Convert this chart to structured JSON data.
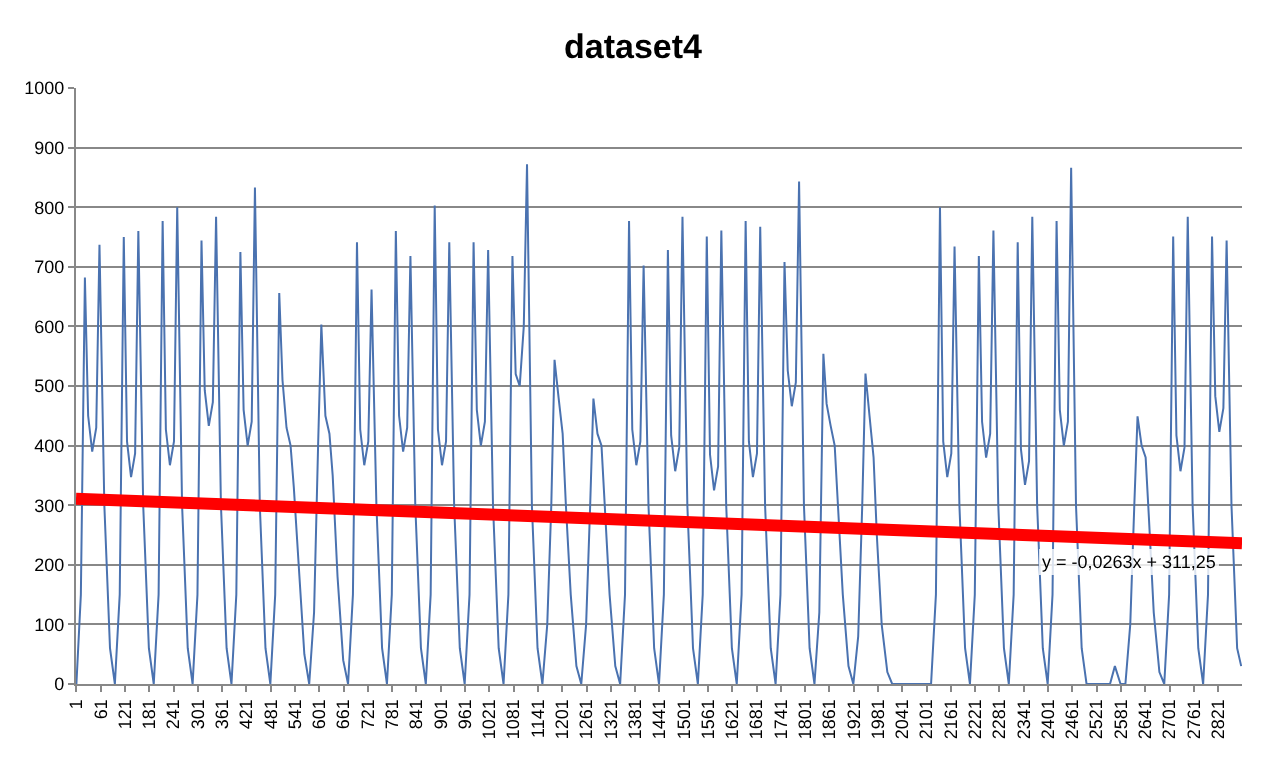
{
  "chart_data": {
    "type": "line",
    "title": "dataset4",
    "xlim": [
      0,
      2880
    ],
    "ylim": [
      0,
      1000
    ],
    "xticks": [
      1,
      61,
      121,
      181,
      241,
      301,
      361,
      421,
      481,
      541,
      601,
      661,
      721,
      781,
      841,
      901,
      961,
      1021,
      1081,
      1141,
      1201,
      1261,
      1321,
      1381,
      1441,
      1501,
      1561,
      1621,
      1681,
      1741,
      1801,
      1861,
      1921,
      1981,
      2041,
      2101,
      2161,
      2221,
      2281,
      2341,
      2401,
      2461,
      2521,
      2581,
      2641,
      2701,
      2761,
      2821
    ],
    "yticks": [
      0,
      100,
      200,
      300,
      400,
      500,
      600,
      700,
      800,
      900,
      1000
    ],
    "grid": "y",
    "marker": "none",
    "line_style": "solid",
    "series": [
      {
        "color": "#4a72b0",
        "x": [
          1,
          12,
          22,
          30,
          40,
          50,
          58,
          70,
          84,
          96,
          108,
          118,
          126,
          136,
          146,
          154,
          166,
          180,
          192,
          204,
          214,
          222,
          232,
          242,
          250,
          262,
          276,
          288,
          300,
          310,
          318,
          328,
          338,
          346,
          358,
          372,
          384,
          396,
          406,
          414,
          424,
          434,
          442,
          454,
          468,
          480,
          492,
          502,
          510,
          520,
          530,
          538,
          550,
          564,
          576,
          588,
          598,
          606,
          616,
          626,
          634,
          646,
          660,
          672,
          684,
          694,
          702,
          712,
          722,
          730,
          742,
          756,
          768,
          780,
          790,
          798,
          808,
          818,
          826,
          838,
          852,
          864,
          876,
          886,
          894,
          904,
          914,
          922,
          934,
          948,
          960,
          972,
          982,
          990,
          1000,
          1010,
          1018,
          1030,
          1044,
          1056,
          1068,
          1078,
          1086,
          1096,
          1106,
          1114,
          1126,
          1140,
          1152,
          1164,
          1174,
          1182,
          1192,
          1202,
          1210,
          1222,
          1236,
          1248,
          1260,
          1270,
          1278,
          1288,
          1298,
          1306,
          1318,
          1332,
          1344,
          1356,
          1366,
          1374,
          1384,
          1394,
          1402,
          1414,
          1428,
          1440,
          1452,
          1462,
          1470,
          1480,
          1490,
          1498,
          1510,
          1524,
          1536,
          1548,
          1558,
          1566,
          1576,
          1586,
          1594,
          1606,
          1620,
          1632,
          1644,
          1654,
          1662,
          1672,
          1682,
          1690,
          1702,
          1716,
          1728,
          1740,
          1750,
          1758,
          1768,
          1778,
          1786,
          1798,
          1812,
          1824,
          1836,
          1846,
          1854,
          1864,
          1874,
          1882,
          1894,
          1908,
          1920,
          1932,
          1942,
          1950,
          1960,
          1970,
          1978,
          1990,
          2004,
          2016,
          2028,
          2038,
          2046,
          2056,
          2066,
          2074,
          2086,
          2100,
          2112,
          2124,
          2134,
          2142,
          2152,
          2162,
          2170,
          2182,
          2196,
          2208,
          2220,
          2230,
          2238,
          2248,
          2258,
          2266,
          2278,
          2292,
          2304,
          2316,
          2326,
          2334,
          2344,
          2354,
          2362,
          2374,
          2388,
          2400,
          2412,
          2422,
          2430,
          2440,
          2450,
          2458,
          2470,
          2484,
          2496,
          2508,
          2518,
          2526,
          2536,
          2546,
          2554,
          2566,
          2580,
          2592,
          2604,
          2614,
          2622,
          2632,
          2642,
          2650,
          2662,
          2676,
          2688,
          2700,
          2710,
          2718,
          2728,
          2738,
          2746,
          2758,
          2772,
          2784,
          2796,
          2806,
          2814,
          2824,
          2834,
          2842,
          2854,
          2868,
          2878
        ],
        "values": [
          0,
          150,
          682,
          450,
          390,
          430,
          737,
          300,
          60,
          0,
          150,
          750,
          407,
          347,
          387,
          760,
          300,
          60,
          0,
          150,
          777,
          427,
          367,
          407,
          800,
          300,
          60,
          0,
          150,
          744,
          493,
          433,
          473,
          784,
          300,
          60,
          0,
          150,
          725,
          460,
          400,
          440,
          833,
          300,
          60,
          0,
          150,
          656,
          510,
          430,
          400,
          330,
          200,
          50,
          0,
          120,
          400,
          603,
          450,
          420,
          350,
          180,
          40,
          0,
          150,
          741,
          427,
          367,
          407,
          662,
          300,
          60,
          0,
          150,
          760,
          450,
          390,
          430,
          718,
          300,
          60,
          0,
          150,
          803,
          427,
          367,
          407,
          741,
          300,
          60,
          0,
          150,
          741,
          460,
          400,
          440,
          728,
          300,
          60,
          0,
          150,
          718,
          520,
          500,
          600,
          872,
          300,
          60,
          0,
          100,
          300,
          544,
          480,
          420,
          300,
          150,
          30,
          0,
          100,
          300,
          479,
          420,
          400,
          300,
          150,
          30,
          0,
          150,
          777,
          427,
          367,
          407,
          702,
          300,
          60,
          0,
          150,
          728,
          417,
          357,
          397,
          784,
          300,
          60,
          0,
          150,
          751,
          385,
          325,
          365,
          761,
          300,
          60,
          0,
          150,
          777,
          407,
          347,
          387,
          767,
          300,
          60,
          0,
          150,
          708,
          526,
          466,
          506,
          843,
          300,
          60,
          0,
          120,
          554,
          470,
          433,
          400,
          300,
          150,
          30,
          0,
          80,
          300,
          521,
          450,
          380,
          250,
          100,
          20,
          0,
          0,
          0,
          0,
          0,
          0,
          0,
          0,
          0,
          0,
          150,
          800,
          407,
          347,
          387,
          734,
          300,
          60,
          0,
          150,
          718,
          440,
          380,
          420,
          761,
          300,
          60,
          0,
          150,
          741,
          394,
          334,
          374,
          784,
          300,
          60,
          0,
          150,
          777,
          460,
          400,
          440,
          866,
          300,
          60,
          0,
          0,
          0,
          0,
          0,
          0,
          0,
          30,
          0,
          0,
          100,
          300,
          449,
          400,
          380,
          280,
          120,
          20,
          0,
          150,
          751,
          417,
          357,
          397,
          784,
          300,
          60,
          0,
          150,
          751,
          483,
          423,
          463,
          744,
          300,
          60,
          30
        ]
      },
      {
        "type": "line",
        "color": "#ff0000",
        "x": [
          0,
          2880
        ],
        "values": [
          311,
          236
        ]
      }
    ],
    "annotations": [
      {
        "text": "y = -0,0263x + 311,25",
        "x": 2600,
        "y": 205
      }
    ]
  }
}
